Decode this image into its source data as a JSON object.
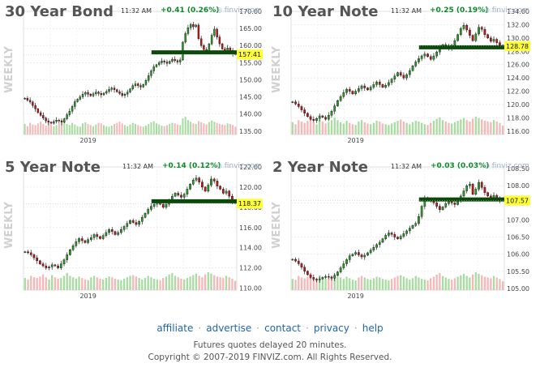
{
  "chart_data": [
    {
      "type": "candlestick",
      "title": "30 Year Bond",
      "time": "11:32 AM",
      "change": "+0.41 (0.26%)",
      "brand": "finviz.com",
      "side_label": "WEEKLY",
      "x_tick": "2019",
      "y_ticks": [
        "170.00",
        "165.00",
        "160.00",
        "155.00",
        "150.00",
        "145.00",
        "140.00",
        "135.00"
      ],
      "ylim": [
        134,
        170
      ],
      "last_label": "157.41",
      "last": 157.41,
      "support_line": 158.0,
      "closes": [
        144.6,
        144.0,
        143.5,
        142.5,
        141.5,
        140.4,
        139.6,
        138.8,
        138.0,
        137.6,
        137.3,
        137.8,
        138.2,
        138.0,
        137.6,
        138.6,
        139.8,
        140.8,
        142.2,
        143.6,
        144.3,
        145.0,
        145.8,
        146.3,
        145.8,
        145.3,
        145.9,
        146.4,
        146.0,
        145.6,
        146.1,
        146.6,
        147.2,
        147.6,
        147.1,
        146.5,
        146.0,
        145.4,
        145.8,
        146.4,
        147.3,
        148.3,
        148.8,
        148.3,
        147.9,
        148.6,
        149.8,
        151.2,
        152.6,
        153.8,
        154.4,
        155.0,
        155.5,
        155.2,
        154.8,
        155.4,
        156.0,
        155.6,
        155.2,
        155.8,
        161.0,
        163.5,
        165.2,
        166.2,
        165.5,
        166.0,
        162.0,
        160.0,
        158.8,
        158.3,
        160.5,
        163.0,
        164.8,
        162.5,
        160.5,
        159.0,
        158.2,
        159.3,
        158.6,
        157.6,
        157.4
      ],
      "volume": [
        38,
        30,
        42,
        36,
        34,
        40,
        46,
        38,
        32,
        48,
        36,
        30,
        34,
        40,
        52,
        44,
        38,
        34,
        42,
        36,
        30,
        28,
        40,
        44,
        38,
        34,
        30,
        36,
        42,
        40,
        34,
        30,
        28,
        32,
        38,
        42,
        46,
        40,
        34,
        30,
        36,
        42,
        38,
        34,
        30,
        28,
        32,
        38,
        44,
        48,
        40,
        36,
        32,
        30,
        34,
        38,
        42,
        40,
        36,
        34,
        58,
        64,
        52,
        46,
        40,
        38,
        48,
        44,
        40,
        36,
        44,
        50,
        46,
        42,
        38,
        36,
        34,
        40,
        38,
        34,
        28
      ]
    },
    {
      "type": "candlestick",
      "title": "10 Year Note",
      "time": "11:32 AM",
      "change": "+0.25 (0.19%)",
      "brand": "finviz.com",
      "side_label": "WEEKLY",
      "x_tick": "2019",
      "y_ticks": [
        "134.00",
        "132.00",
        "130.00",
        "128.00",
        "126.00",
        "124.00",
        "122.00",
        "120.00",
        "118.00",
        "116.00"
      ],
      "ylim": [
        115.5,
        134
      ],
      "last_label": "128.78",
      "last": 128.78,
      "support_line": 128.6,
      "closes": [
        120.4,
        120.1,
        119.7,
        119.2,
        118.7,
        118.2,
        117.8,
        117.6,
        117.9,
        118.3,
        118.1,
        117.8,
        118.4,
        119.0,
        119.8,
        120.6,
        121.2,
        121.8,
        122.3,
        122.0,
        121.6,
        122.0,
        122.4,
        122.8,
        122.5,
        122.2,
        122.6,
        123.0,
        123.4,
        123.0,
        122.6,
        122.9,
        123.3,
        123.8,
        124.3,
        124.8,
        124.4,
        124.0,
        124.5,
        125.1,
        125.8,
        126.4,
        126.9,
        127.3,
        127.6,
        127.2,
        126.8,
        127.3,
        127.9,
        128.6,
        129.0,
        128.7,
        128.4,
        128.9,
        129.6,
        130.5,
        131.4,
        131.9,
        131.2,
        130.4,
        129.6,
        130.6,
        131.6,
        131.3,
        130.5,
        130.0,
        129.5,
        129.8,
        129.3,
        128.9,
        128.8
      ],
      "volume": [
        36,
        30,
        42,
        38,
        34,
        40,
        46,
        36,
        30,
        44,
        38,
        32,
        36,
        42,
        50,
        42,
        36,
        32,
        40,
        34,
        30,
        28,
        38,
        42,
        36,
        32,
        30,
        34,
        40,
        38,
        32,
        30,
        28,
        32,
        36,
        40,
        44,
        38,
        34,
        30,
        36,
        40,
        38,
        34,
        30,
        28,
        34,
        40,
        46,
        50,
        42,
        38,
        34,
        32,
        36,
        40,
        44,
        48,
        42,
        38,
        46,
        52,
        48,
        44,
        40,
        38,
        36,
        42,
        38,
        34,
        26
      ]
    },
    {
      "type": "candlestick",
      "title": "5 Year Note",
      "time": "11:32 AM",
      "change": "+0.14 (0.12%)",
      "brand": "finviz.com",
      "side_label": "WEEKLY",
      "x_tick": "2019",
      "y_ticks": [
        "122.00",
        "120.00",
        "118.00",
        "116.00",
        "114.00",
        "112.00",
        "110.00"
      ],
      "ylim": [
        109.8,
        122
      ],
      "last_label": "118.37",
      "last": 118.37,
      "support_line": 118.6,
      "closes": [
        113.6,
        113.5,
        113.3,
        113.0,
        112.7,
        112.4,
        112.2,
        112.0,
        112.1,
        112.3,
        112.2,
        112.0,
        112.4,
        112.8,
        113.3,
        113.8,
        114.2,
        114.6,
        114.9,
        114.7,
        114.5,
        114.8,
        115.0,
        115.3,
        115.1,
        114.9,
        115.2,
        115.5,
        115.8,
        115.6,
        115.3,
        115.5,
        115.8,
        116.1,
        116.4,
        116.7,
        116.5,
        116.3,
        116.6,
        117.0,
        117.4,
        117.8,
        118.1,
        118.3,
        118.5,
        118.3,
        118.0,
        118.3,
        118.7,
        119.1,
        119.4,
        119.2,
        119.0,
        119.3,
        119.8,
        120.3,
        120.7,
        120.9,
        120.5,
        120.0,
        119.6,
        120.2,
        120.8,
        120.6,
        120.1,
        119.8,
        119.4,
        119.6,
        119.1,
        118.6,
        118.4
      ],
      "volume": [
        34,
        30,
        40,
        36,
        34,
        38,
        44,
        36,
        30,
        42,
        36,
        32,
        34,
        40,
        48,
        40,
        36,
        32,
        38,
        34,
        30,
        28,
        36,
        40,
        36,
        32,
        30,
        34,
        38,
        36,
        32,
        30,
        28,
        32,
        36,
        40,
        42,
        38,
        34,
        30,
        34,
        40,
        36,
        32,
        30,
        28,
        34,
        38,
        44,
        48,
        40,
        36,
        32,
        30,
        34,
        38,
        42,
        46,
        40,
        36,
        44,
        50,
        46,
        42,
        38,
        36,
        34,
        40,
        36,
        32,
        26
      ]
    },
    {
      "type": "candlestick",
      "title": "2 Year Note",
      "time": "11:32 AM",
      "change": "+0.03 (0.03%)",
      "brand": "finviz.com",
      "side_label": "WEEKLY",
      "x_tick": "2019",
      "y_ticks": [
        "108.50",
        "108.00",
        "107.50",
        "107.00",
        "106.50",
        "106.00",
        "105.50",
        "105.00"
      ],
      "ylim": [
        104.95,
        108.55
      ],
      "last_label": "107.57",
      "last": 107.57,
      "support_line": 107.6,
      "closes": [
        105.85,
        105.8,
        105.72,
        105.62,
        105.5,
        105.4,
        105.32,
        105.27,
        105.25,
        105.28,
        105.32,
        105.35,
        105.33,
        105.3,
        105.38,
        105.48,
        105.6,
        105.72,
        105.84,
        105.95,
        106.0,
        106.05,
        105.98,
        105.92,
        105.97,
        106.04,
        106.12,
        106.2,
        106.28,
        106.35,
        106.45,
        106.55,
        106.62,
        106.58,
        106.5,
        106.45,
        106.52,
        106.6,
        106.68,
        106.76,
        106.84,
        106.9,
        107.1,
        107.4,
        107.65,
        107.6,
        107.55,
        107.5,
        107.4,
        107.3,
        107.38,
        107.48,
        107.55,
        107.5,
        107.45,
        107.55,
        107.7,
        107.85,
        108.0,
        108.05,
        107.75,
        107.9,
        108.1,
        107.95,
        107.8,
        107.7,
        107.65,
        107.72,
        107.62,
        107.58,
        107.57
      ],
      "volume": [
        30,
        28,
        38,
        34,
        32,
        36,
        42,
        34,
        28,
        40,
        34,
        30,
        32,
        38,
        44,
        38,
        34,
        30,
        36,
        32,
        28,
        26,
        34,
        38,
        34,
        30,
        28,
        32,
        36,
        34,
        30,
        28,
        26,
        30,
        34,
        38,
        40,
        36,
        32,
        28,
        32,
        38,
        34,
        30,
        28,
        26,
        32,
        36,
        42,
        46,
        38,
        34,
        30,
        28,
        32,
        36,
        40,
        44,
        38,
        34,
        42,
        48,
        44,
        40,
        36,
        34,
        32,
        38,
        34,
        30,
        24
      ]
    }
  ],
  "footer": {
    "links": [
      "affiliate",
      "advertise",
      "contact",
      "privacy",
      "help"
    ],
    "delay": "Futures quotes delayed 20 minutes.",
    "copyright": "Copyright © 2007-2019 FINVIZ.com. All Rights Reserved."
  }
}
